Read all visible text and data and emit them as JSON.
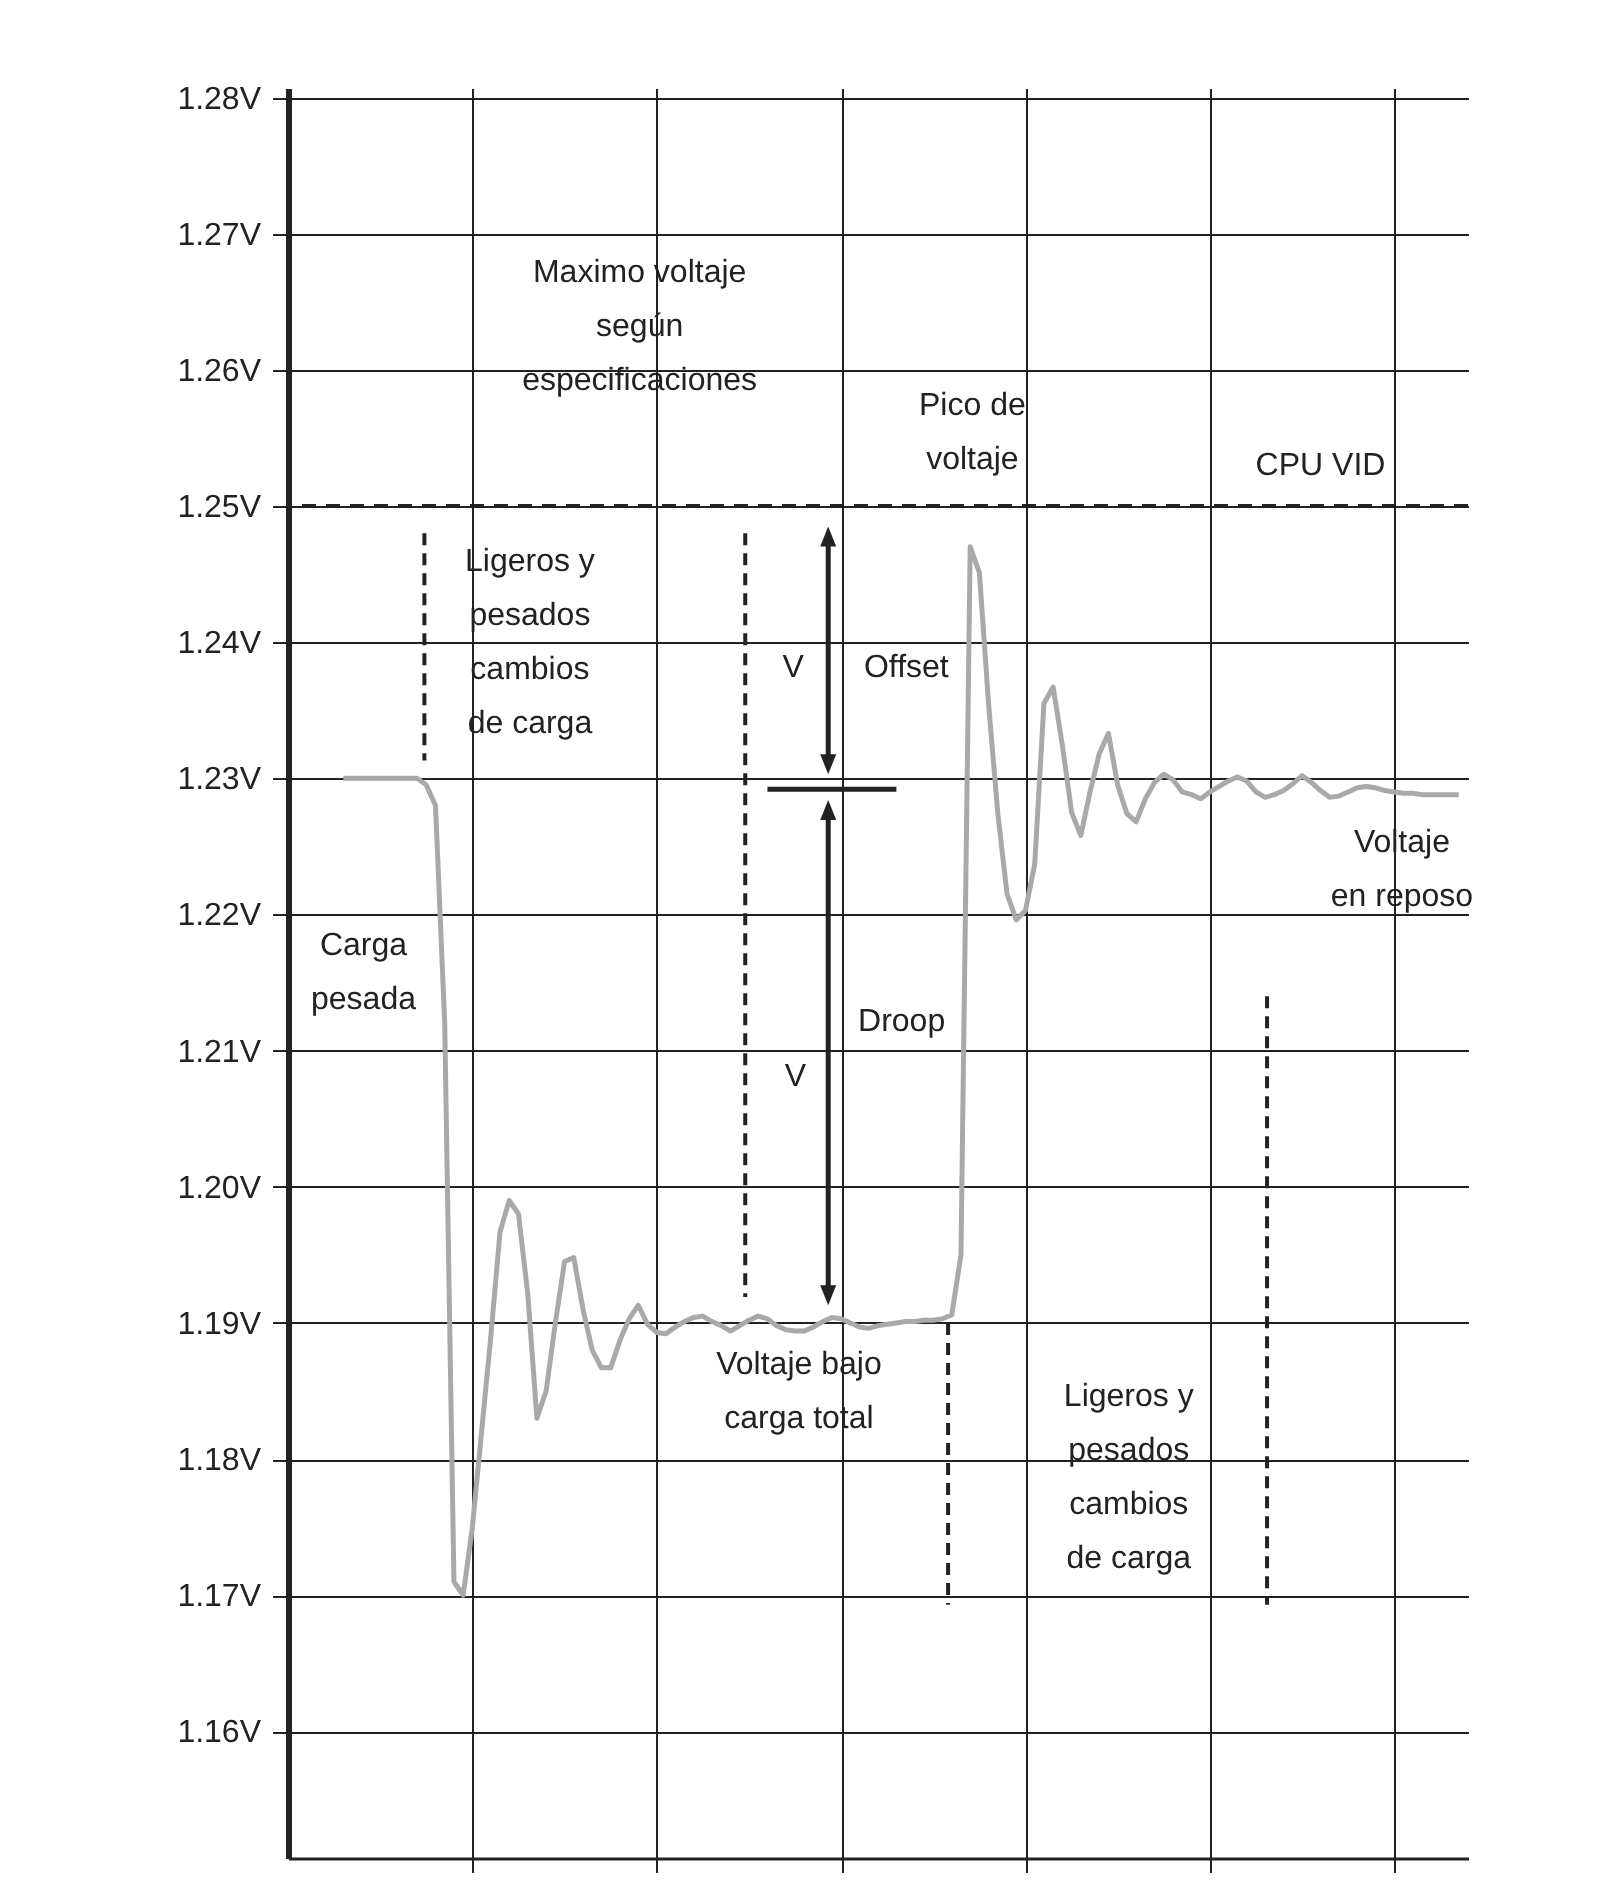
{
  "chart_data": {
    "type": "line",
    "ylim": [
      1.1507,
      1.2807
    ],
    "categories": [
      null,
      null,
      null,
      null,
      null,
      null,
      null,
      null,
      null,
      null,
      null,
      null,
      null,
      null,
      null,
      null,
      null,
      null,
      null,
      null,
      null,
      null,
      null,
      null,
      null,
      null,
      null,
      null,
      null,
      null,
      null,
      null,
      null,
      null,
      null,
      null,
      null,
      null,
      null,
      null,
      null,
      null,
      null,
      null,
      null,
      null,
      null,
      null,
      null,
      null,
      null,
      null,
      null,
      null,
      null,
      null,
      null,
      null,
      null,
      null,
      null,
      null,
      null,
      null,
      null,
      null,
      null,
      null,
      null,
      null,
      null,
      null,
      null,
      null,
      null,
      null,
      null,
      null,
      null,
      null,
      null,
      null,
      null,
      null,
      null,
      null,
      null,
      null,
      null,
      null,
      null,
      null,
      null,
      null,
      null,
      null,
      null,
      null,
      null,
      null,
      null,
      null,
      null,
      null,
      null,
      null,
      null,
      null,
      null,
      null,
      null,
      null,
      null,
      null,
      null,
      null,
      null,
      null,
      null,
      null,
      null,
      null,
      null,
      null,
      null,
      null,
      null,
      null,
      null
    ],
    "yticks": [
      {
        "value": 1.16,
        "label": "1.16V"
      },
      {
        "value": 1.17,
        "label": "1.17V"
      },
      {
        "value": 1.18,
        "label": "1.18V"
      },
      {
        "value": 1.19,
        "label": "1.19V"
      },
      {
        "value": 1.2,
        "label": "1.20V"
      },
      {
        "value": 1.21,
        "label": "1.21V"
      },
      {
        "value": 1.22,
        "label": "1.22V"
      },
      {
        "value": 1.23,
        "label": "1.23V"
      },
      {
        "value": 1.24,
        "label": "1.24V"
      },
      {
        "value": 1.25,
        "label": "1.25V"
      },
      {
        "value": 1.26,
        "label": "1.26V"
      },
      {
        "value": 1.27,
        "label": "1.27V"
      },
      {
        "value": 1.28,
        "label": "1.28V"
      }
    ],
    "grid": true,
    "marker": "none",
    "line_style": "solid",
    "series": [
      {
        "color": "#a9a9ab",
        "values": [
          null,
          null,
          null,
          null,
          null,
          null,
          1.23,
          1.23,
          1.23,
          1.23,
          1.23,
          1.23,
          1.23,
          1.23,
          1.23,
          1.2295,
          1.228,
          1.212,
          1.171,
          1.17,
          1.175,
          1.182,
          1.189,
          1.1967,
          1.199,
          1.198,
          1.1922,
          1.183,
          1.185,
          1.19,
          1.1945,
          1.1948,
          1.191,
          1.188,
          1.1867,
          1.1867,
          1.1887,
          1.1903,
          1.1913,
          1.1899,
          1.1893,
          1.1892,
          1.1897,
          1.1901,
          1.1904,
          1.1905,
          1.1901,
          1.1898,
          1.1894,
          1.1898,
          1.1902,
          1.1905,
          1.1903,
          1.1898,
          1.1895,
          1.1894,
          1.1894,
          1.1897,
          1.1901,
          1.1904,
          1.1903,
          1.19,
          1.1897,
          1.1896,
          1.1898,
          1.1899,
          1.19,
          1.1901,
          1.1901,
          1.1902,
          1.1902,
          1.1903,
          1.1906,
          1.195,
          1.247,
          1.2451,
          1.2354,
          1.2274,
          1.2215,
          1.2196,
          1.2203,
          1.2237,
          1.2355,
          1.2367,
          1.2324,
          1.2275,
          1.2258,
          1.229,
          1.2318,
          1.2333,
          1.2295,
          1.2274,
          1.2268,
          1.2285,
          1.2297,
          1.2303,
          1.2299,
          1.229,
          1.2288,
          1.2285,
          1.229,
          1.2294,
          1.2298,
          1.2301,
          1.2298,
          1.229,
          1.2286,
          1.2288,
          1.2291,
          1.2296,
          1.2302,
          1.2297,
          1.2291,
          1.2286,
          1.2287,
          1.229,
          1.2293,
          1.2294,
          1.2293,
          1.2291,
          1.229,
          1.2289,
          1.2289,
          1.2288,
          1.2288,
          1.2288,
          1.2288,
          1.2288,
          null
        ]
      }
    ],
    "ref_lines": [
      {
        "axis": "y",
        "value": 1.25,
        "color": "#222222",
        "line_style": "dashed"
      }
    ],
    "annotations": [
      "Maximo voltaje\nsegún\nespecificaciones",
      "Pico de\nvoltaje",
      "CPU VID",
      "Ligeros y\npesados\ncambios\nde carga",
      "V",
      "Offset",
      "V",
      "Droop",
      "Carga\npesada",
      "Voltaje\nen reposo",
      "Voltaje bajo\ncarga total",
      "Ligeros y\npesados\ncambios\nde carga"
    ]
  }
}
